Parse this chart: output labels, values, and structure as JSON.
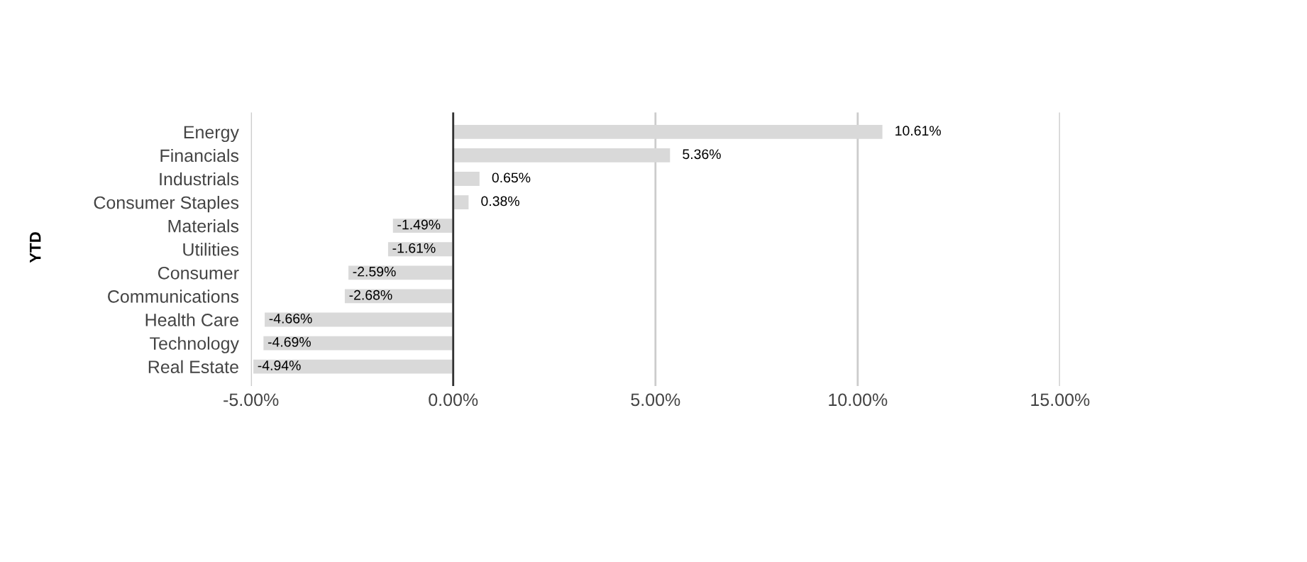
{
  "chart_data": {
    "type": "bar",
    "orientation": "horizontal",
    "ylabel": "YTD",
    "categories": [
      "Energy",
      "Financials",
      "Industrials",
      "Consumer Staples",
      "Materials",
      "Utilities",
      "Consumer",
      "Communications",
      "Health Care",
      "Technology",
      "Real Estate"
    ],
    "values": [
      10.61,
      5.36,
      0.65,
      0.38,
      -1.49,
      -1.61,
      -2.59,
      -2.68,
      -4.66,
      -4.69,
      -4.94
    ],
    "value_labels": [
      "10.61%",
      "5.36%",
      "0.65%",
      "0.38%",
      "-1.49%",
      "-1.61%",
      "-2.59%",
      "-2.68%",
      "-4.66%",
      "-4.69%",
      "-4.94%"
    ],
    "color": "#d9d9d9",
    "xlim": [
      -5,
      15
    ],
    "xticks": [
      {
        "value": -5,
        "label": "-5.00%"
      },
      {
        "value": 0,
        "label": "0.00%"
      },
      {
        "value": 5,
        "label": "5.00%"
      },
      {
        "value": 10,
        "label": "10.00%"
      },
      {
        "value": 15,
        "label": "15.00%"
      }
    ],
    "grid": "x",
    "ref_lines": [
      {
        "axis": "x",
        "value": 0,
        "color": "#333333"
      }
    ]
  }
}
